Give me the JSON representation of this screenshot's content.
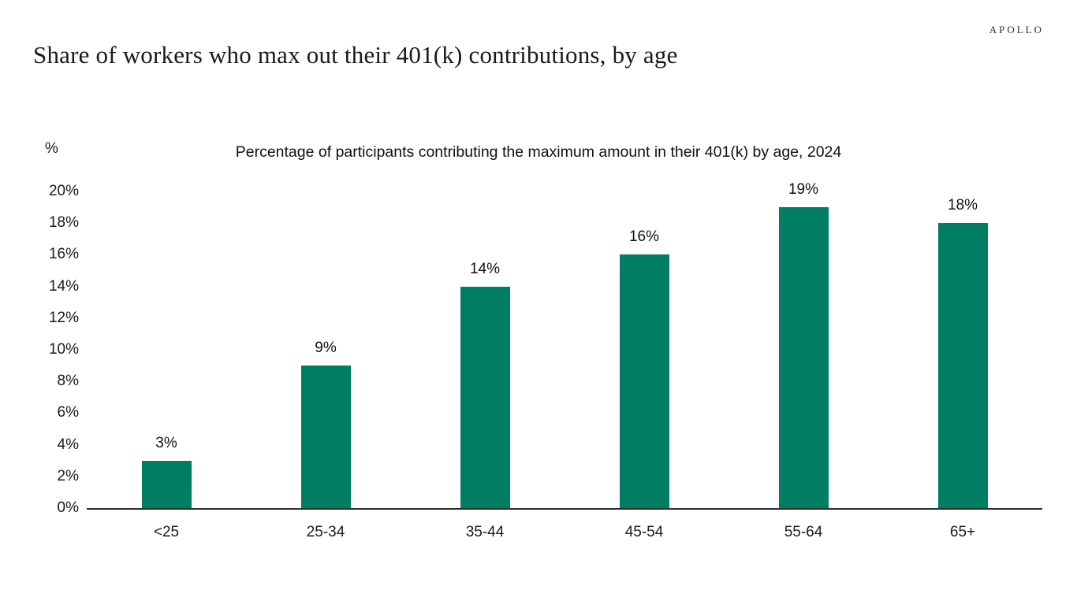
{
  "header": {
    "logo": "APOLLO",
    "title": "Share of workers who max out their 401(k) contributions, by age"
  },
  "chart_data": {
    "type": "bar",
    "title": "Percentage of participants contributing the maximum amount in their 401(k) by age, 2024",
    "unit_label": "%",
    "categories": [
      "<25",
      "25-34",
      "35-44",
      "45-54",
      "55-64",
      "65+"
    ],
    "values": [
      3,
      9,
      14,
      16,
      19,
      18
    ],
    "data_labels": [
      "3%",
      "9%",
      "14%",
      "16%",
      "19%",
      "18%"
    ],
    "ytick_labels": [
      "0%",
      "2%",
      "4%",
      "6%",
      "8%",
      "10%",
      "12%",
      "14%",
      "16%",
      "18%",
      "20%"
    ],
    "ytick_step": 2,
    "ylim": [
      0,
      20
    ],
    "xlabel": "",
    "ylabel": "%",
    "grid": false,
    "legend": "none",
    "bar_color": "#007E63",
    "axis_color": "#2F2F2F",
    "text_color": "#1A1A1A"
  }
}
